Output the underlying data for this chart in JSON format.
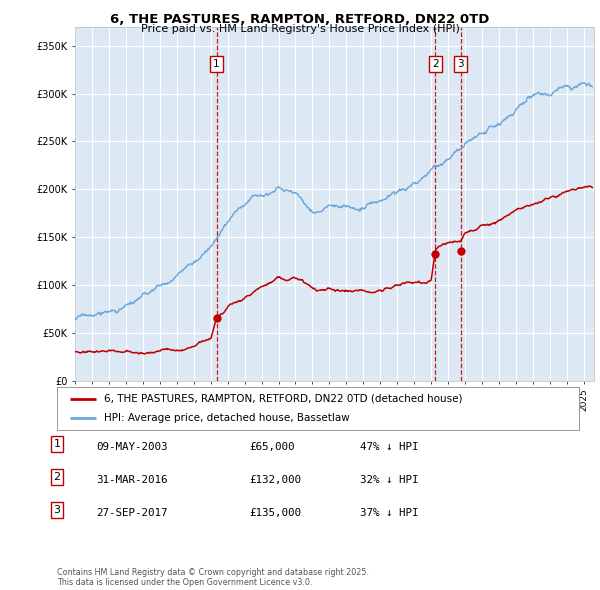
{
  "title": "6, THE PASTURES, RAMPTON, RETFORD, DN22 0TD",
  "subtitle": "Price paid vs. HM Land Registry's House Price Index (HPI)",
  "background_color": "#dce9f5",
  "ylim": [
    0,
    370000
  ],
  "yticks": [
    0,
    50000,
    100000,
    150000,
    200000,
    250000,
    300000,
    350000
  ],
  "xlim_start": 1995.0,
  "xlim_end": 2025.6,
  "purchases": [
    {
      "label": "1",
      "date_num": 2003.35,
      "price": 65000
    },
    {
      "label": "2",
      "date_num": 2016.25,
      "price": 132000
    },
    {
      "label": "3",
      "date_num": 2017.73,
      "price": 135000
    }
  ],
  "legend_property_label": "6, THE PASTURES, RAMPTON, RETFORD, DN22 0TD (detached house)",
  "legend_hpi_label": "HPI: Average price, detached house, Bassetlaw",
  "table_entries": [
    {
      "num": "1",
      "date": "09-MAY-2003",
      "price": "£65,000",
      "pct": "47% ↓ HPI"
    },
    {
      "num": "2",
      "date": "31-MAR-2016",
      "price": "£132,000",
      "pct": "32% ↓ HPI"
    },
    {
      "num": "3",
      "date": "27-SEP-2017",
      "price": "£135,000",
      "pct": "37% ↓ HPI"
    }
  ],
  "footer": "Contains HM Land Registry data © Crown copyright and database right 2025.\nThis data is licensed under the Open Government Licence v3.0.",
  "property_color": "#c00000",
  "hpi_color": "#6fa8dc",
  "vline_color": "#cc0000",
  "marker_color": "#c00000",
  "grid_color": "#ffffff"
}
